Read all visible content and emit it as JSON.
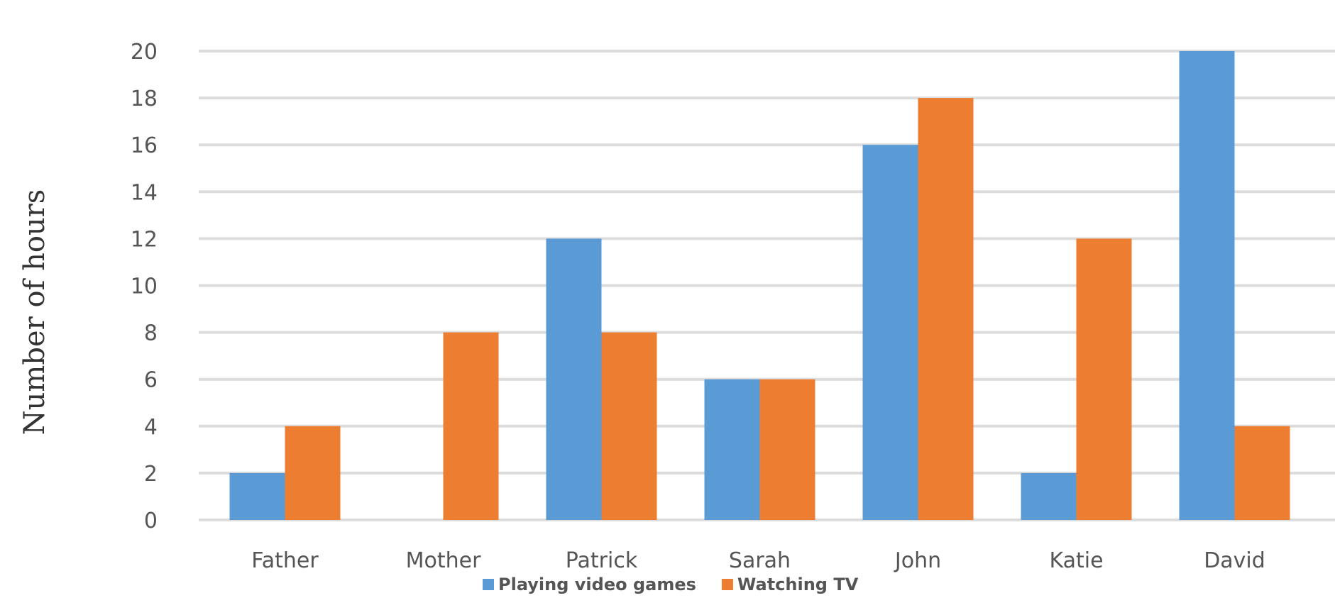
{
  "chart_data": {
    "type": "bar",
    "title": "",
    "xlabel": "",
    "ylabel": "Number of hours",
    "ylim": [
      0,
      20
    ],
    "yticks": [
      0,
      2,
      4,
      6,
      8,
      10,
      12,
      14,
      16,
      18,
      20
    ],
    "grid": true,
    "legend_position": "bottom",
    "categories": [
      "Father",
      "Mother",
      "Patrick",
      "Sarah",
      "John",
      "Katie",
      "David"
    ],
    "series": [
      {
        "name": "Playing video games",
        "color": "#5b9bd5",
        "values": [
          2,
          0,
          12,
          6,
          16,
          2,
          20
        ]
      },
      {
        "name": "Watching TV",
        "color": "#ed7d31",
        "values": [
          4,
          8,
          8,
          6,
          18,
          12,
          4
        ]
      }
    ]
  }
}
